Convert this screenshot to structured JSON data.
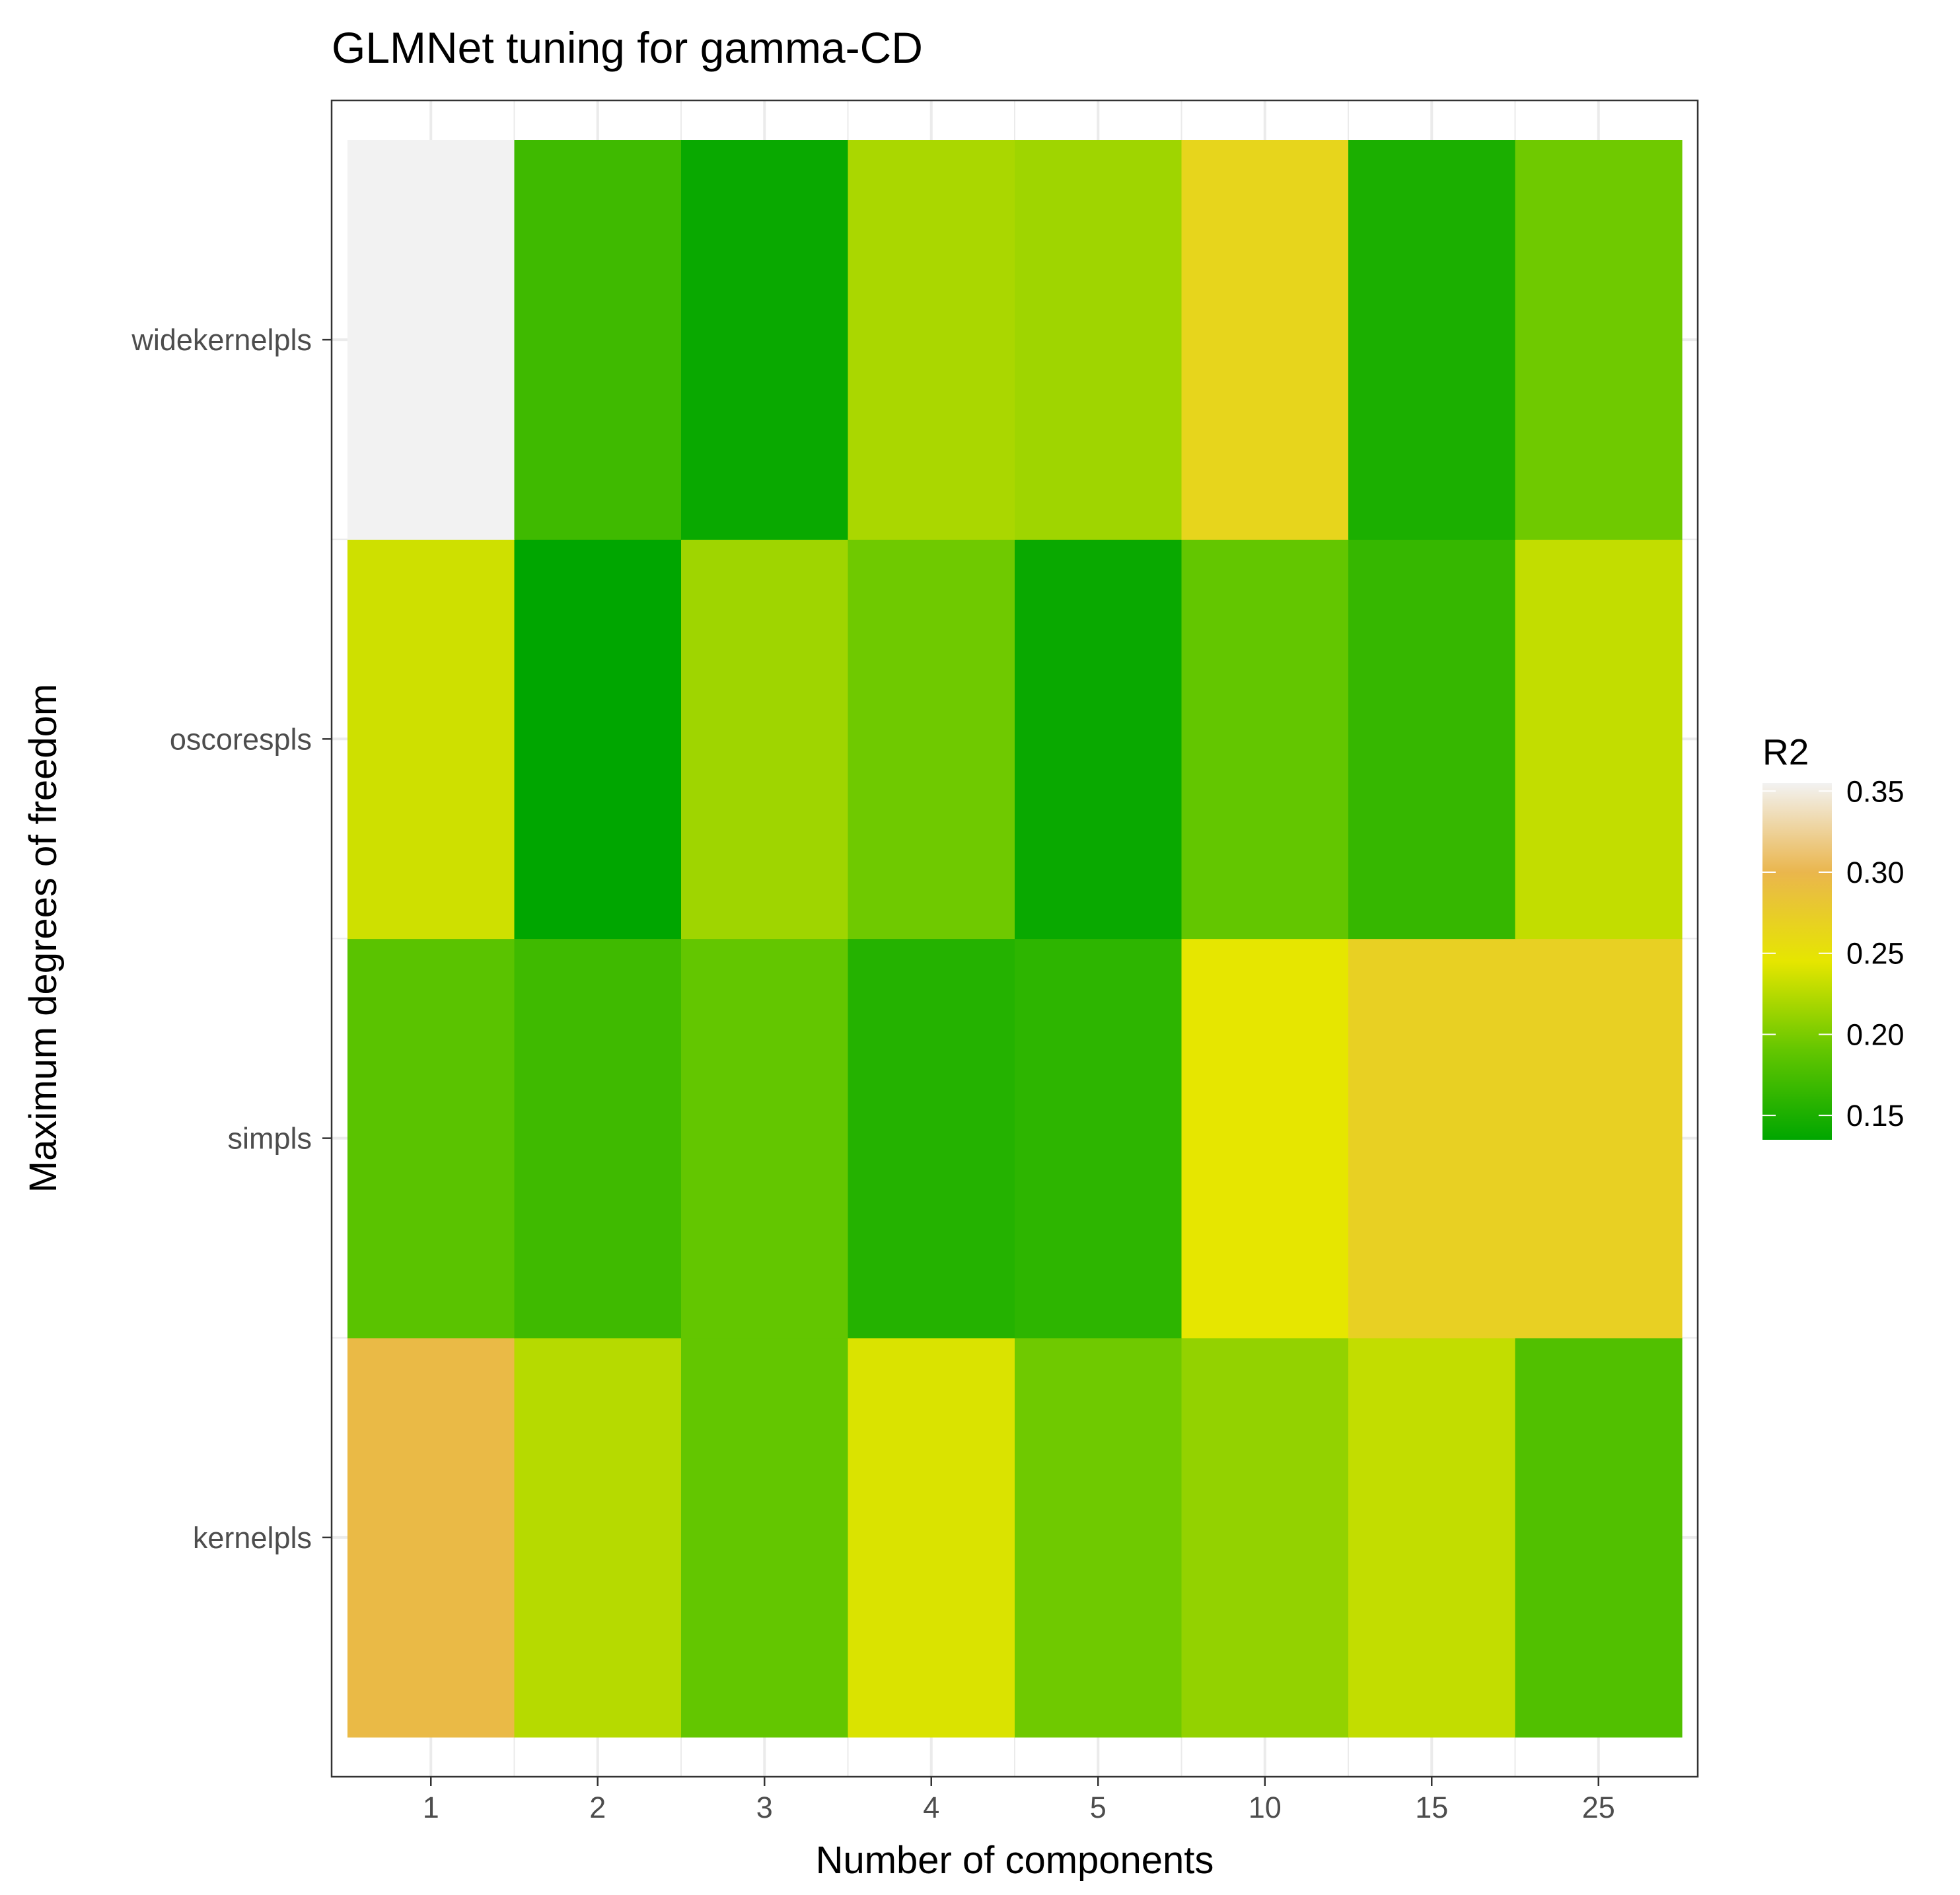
{
  "chart_data": {
    "type": "heatmap",
    "title": "GLMNet tuning for gamma-CD",
    "xlabel": "Number of components",
    "ylabel": "Maximum degrees of freedom",
    "x_categories": [
      "1",
      "2",
      "3",
      "4",
      "5",
      "10",
      "15",
      "25"
    ],
    "y_categories": [
      "kernelpls",
      "simpls",
      "oscorespls",
      "widekernelpls"
    ],
    "values": [
      [
        0.295,
        0.225,
        0.19,
        0.24,
        0.195,
        0.21,
        0.23,
        0.18
      ],
      [
        0.185,
        0.17,
        0.19,
        0.155,
        0.16,
        0.245,
        0.27,
        0.27
      ],
      [
        0.235,
        0.135,
        0.215,
        0.195,
        0.14,
        0.19,
        0.165,
        0.23
      ],
      [
        0.355,
        0.17,
        0.14,
        0.22,
        0.215,
        0.265,
        0.15,
        0.195
      ]
    ],
    "grid": true,
    "legend": {
      "title": "R2",
      "position": "right",
      "ticks": [
        "0.35",
        "0.30",
        "0.25",
        "0.20",
        "0.15"
      ],
      "tick_values": [
        0.35,
        0.3,
        0.25,
        0.2,
        0.15
      ],
      "range": [
        0.135,
        0.355
      ],
      "colors": [
        {
          "value": 0.135,
          "color": "#00a600"
        },
        {
          "value": 0.19,
          "color": "#63c600"
        },
        {
          "value": 0.245,
          "color": "#e6e600"
        },
        {
          "value": 0.3,
          "color": "#eab64d"
        },
        {
          "value": 0.355,
          "color": "#f2f2f2"
        }
      ]
    }
  }
}
